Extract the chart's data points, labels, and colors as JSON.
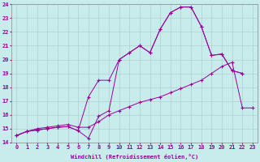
{
  "xlabel": "Windchill (Refroidissement éolien,°C)",
  "background_color": "#c8ecec",
  "grid_color": "#b0d0d0",
  "line_color": "#990099",
  "xlim": [
    -0.5,
    23.5
  ],
  "ylim": [
    14,
    24
  ],
  "xticks": [
    0,
    1,
    2,
    3,
    4,
    5,
    6,
    7,
    8,
    9,
    10,
    11,
    12,
    13,
    14,
    15,
    16,
    17,
    18,
    19,
    20,
    21,
    22,
    23
  ],
  "yticks": [
    14,
    15,
    16,
    17,
    18,
    19,
    20,
    21,
    22,
    23,
    24
  ],
  "line1_x": [
    0,
    1,
    2,
    3,
    4,
    5,
    6,
    7,
    8,
    9,
    10,
    11,
    12,
    13,
    14,
    15,
    16,
    17,
    18,
    19,
    20,
    21,
    22
  ],
  "line1_y": [
    14.5,
    14.8,
    14.9,
    15.0,
    15.1,
    15.15,
    14.85,
    14.3,
    15.9,
    16.3,
    20.0,
    20.5,
    21.0,
    20.5,
    22.2,
    23.4,
    23.8,
    23.8,
    22.4,
    20.3,
    20.4,
    19.2,
    19.0
  ],
  "line2_x": [
    0,
    1,
    2,
    3,
    4,
    5,
    6,
    7,
    8,
    9,
    10,
    11,
    12,
    13,
    14,
    15,
    16,
    17,
    18,
    19,
    20,
    21,
    22
  ],
  "line2_y": [
    14.5,
    14.8,
    14.9,
    15.0,
    15.1,
    15.15,
    14.85,
    17.3,
    18.5,
    18.5,
    20.0,
    20.5,
    21.0,
    20.5,
    22.2,
    23.4,
    23.8,
    23.8,
    22.4,
    20.3,
    20.4,
    19.2,
    19.0
  ],
  "line3_x": [
    0,
    1,
    2,
    3,
    4,
    5,
    6,
    7,
    8,
    9,
    10,
    11,
    12,
    13,
    14,
    15,
    16,
    17,
    18,
    19,
    20,
    21,
    22,
    23
  ],
  "line3_y": [
    14.5,
    14.8,
    15.0,
    15.1,
    15.2,
    15.3,
    15.1,
    15.1,
    15.5,
    16.0,
    16.3,
    16.6,
    16.9,
    17.1,
    17.3,
    17.6,
    17.9,
    18.2,
    18.5,
    19.0,
    19.5,
    19.8,
    16.5,
    16.5
  ]
}
